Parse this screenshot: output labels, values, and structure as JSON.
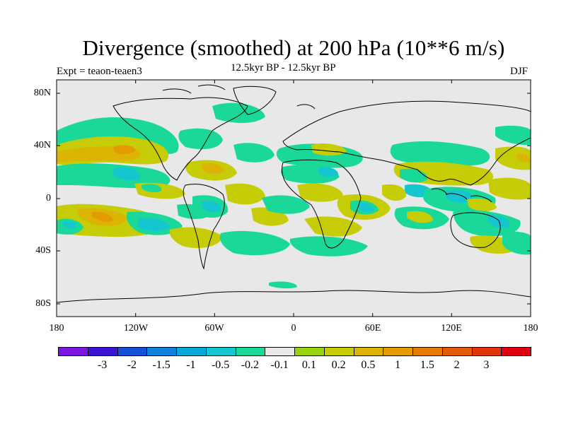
{
  "title": "Divergence (smoothed) at 200 hPa (10**6 m/s)",
  "experiment": "Expt = teaon-teaen3",
  "period": "12.5kyr BP - 12.5kyr BP",
  "season": "DJF",
  "lat_labels": [
    "80N",
    "40N",
    "0",
    "40S",
    "80S"
  ],
  "lon_labels": [
    "180",
    "120W",
    "60W",
    "0",
    "60E",
    "120E",
    "180"
  ],
  "colorbar": {
    "colors": [
      "#7a16e0",
      "#3a13d6",
      "#1550d8",
      "#0f82dc",
      "#0aa8d8",
      "#14c6d0",
      "#19d89a",
      "#e8e8e8",
      "#98d40a",
      "#c6cc06",
      "#dcb404",
      "#e29a05",
      "#e47c06",
      "#e45a08",
      "#e2330c",
      "#e00010"
    ],
    "labels": [
      "-3",
      "-2",
      "-1.5",
      "-1",
      "-0.5",
      "-0.2",
      "-0.1",
      "0.1",
      "0.2",
      "0.5",
      "1",
      "1.5",
      "2",
      "3"
    ]
  },
  "colors": {
    "background": "#e8e8e8",
    "coast": "#000000"
  }
}
